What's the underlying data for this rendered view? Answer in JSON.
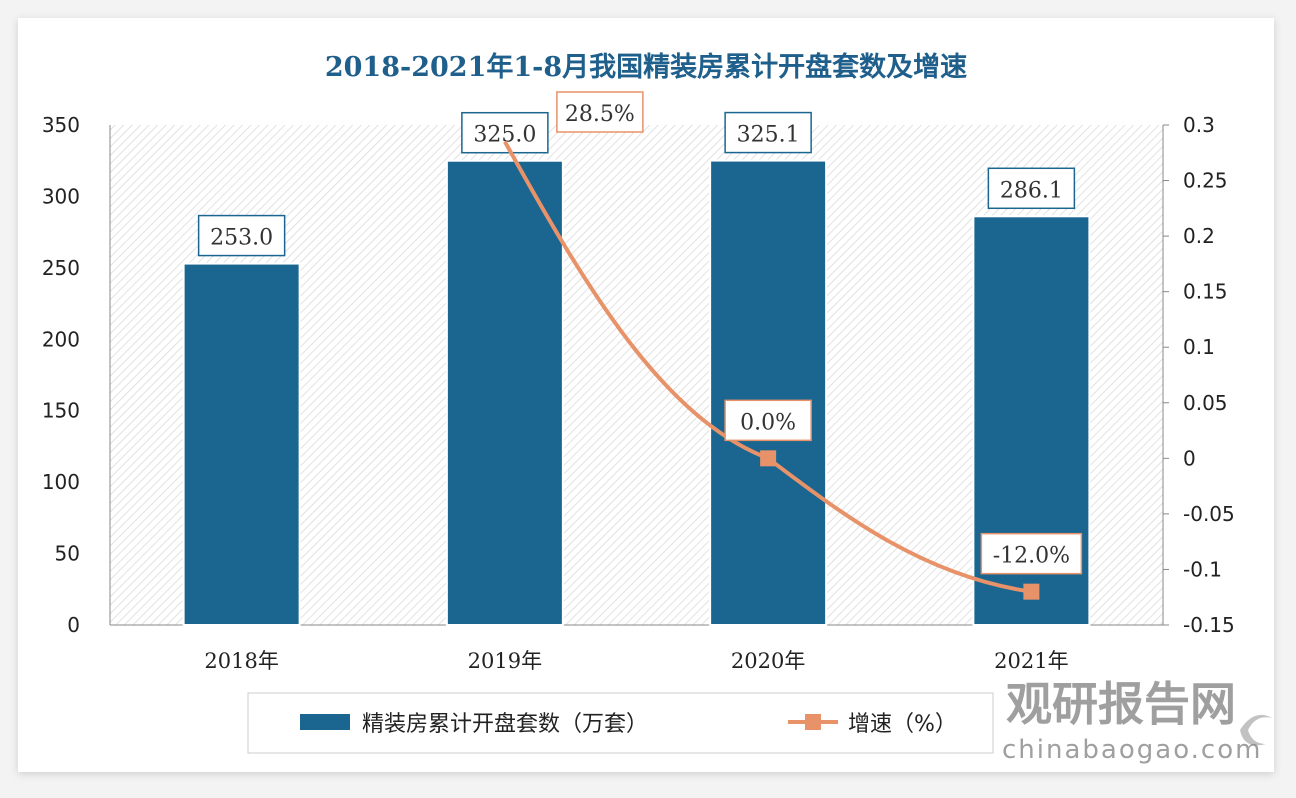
{
  "chart_data": {
    "type": "bar+line",
    "title": "2018-2021年1-8月我国精装房累计开盘套数及增速",
    "categories": [
      "2018年",
      "2019年",
      "2020年",
      "2021年"
    ],
    "series": [
      {
        "name": "精装房累计开盘套数（万套）",
        "type": "bar",
        "axis": "left",
        "values": [
          253.0,
          325.0,
          325.1,
          286.1
        ],
        "labels": [
          "253.0",
          "325.0",
          "325.1",
          "286.1"
        ],
        "color": "#1a6690"
      },
      {
        "name": "增速（%）",
        "type": "line",
        "axis": "right",
        "values": [
          null,
          0.285,
          0.0,
          -0.12
        ],
        "labels": [
          null,
          "28.5%",
          "0.0%",
          "-12.0%"
        ],
        "color": "#e8926a"
      }
    ],
    "y_left": {
      "ylim": [
        0,
        350
      ],
      "ticks": [
        "0",
        "50",
        "100",
        "150",
        "200",
        "250",
        "300",
        "350"
      ]
    },
    "y_right": {
      "ylim": [
        -0.15,
        0.3
      ],
      "ticks": [
        "-0.15",
        "-0.1",
        "-0.05",
        "0",
        "0.05",
        "0.1",
        "0.15",
        "0.2",
        "0.25",
        "0.3"
      ]
    },
    "grid": false,
    "legend": "bottom"
  },
  "watermark": {
    "cn": "观研报告网",
    "en": "chinabaogao.com"
  }
}
